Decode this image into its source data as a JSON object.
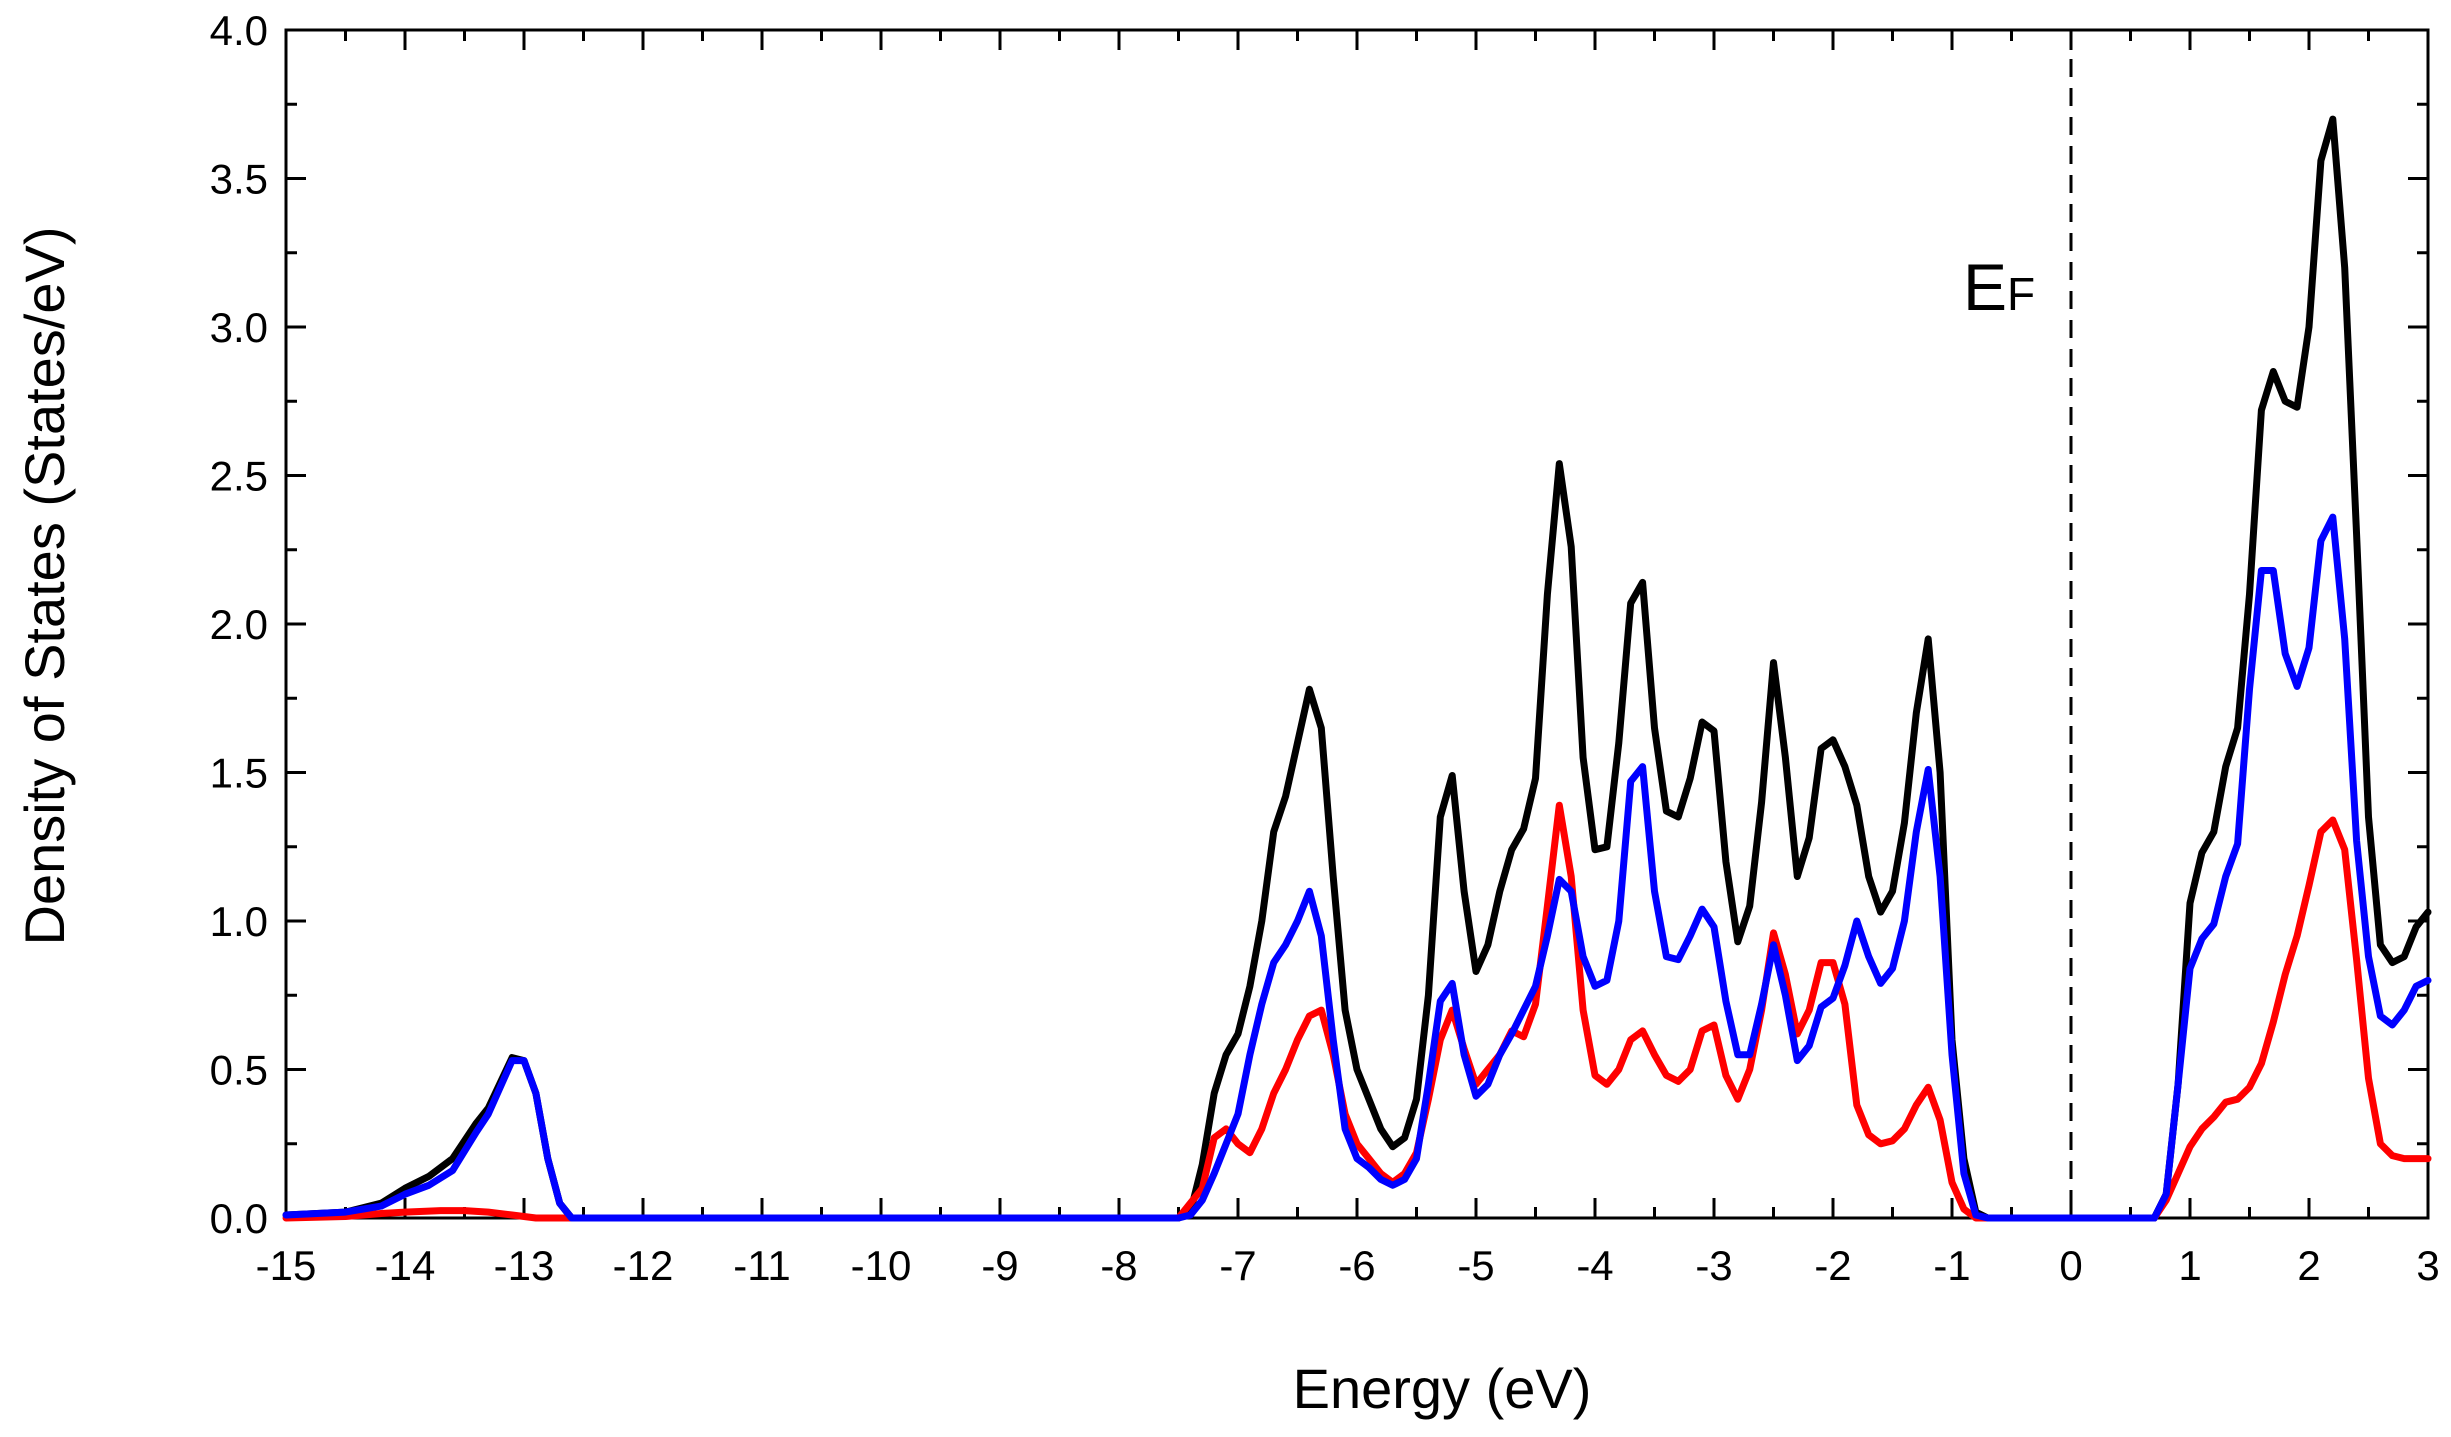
{
  "chart_data": {
    "type": "line",
    "xlabel": "Energy (eV)",
    "ylabel": "Density of States (States/eV)",
    "xlim": [
      -15,
      3
    ],
    "ylim": [
      0,
      4
    ],
    "x_ticks": [
      "-15",
      "-14",
      "-13",
      "-12",
      "-11",
      "-10",
      "-9",
      "-8",
      "-7",
      "-6",
      "-5",
      "-4",
      "-3",
      "-2",
      "-1",
      "0",
      "1",
      "2",
      "3"
    ],
    "y_ticks": [
      "0.0",
      "0.5",
      "1.0",
      "1.5",
      "2.0",
      "2.5",
      "3.0",
      "3.5",
      "4.0"
    ],
    "fermi_level": {
      "x": 0,
      "label_main": "E",
      "label_sub": "F",
      "style": "dashed"
    },
    "grid": false,
    "legend": "none",
    "series": [
      {
        "color": "#000000",
        "x": [
          -15,
          -14.5,
          -14.2,
          -14.0,
          -13.8,
          -13.6,
          -13.4,
          -13.3,
          -13.1,
          -13.0,
          -12.9,
          -12.8,
          -12.7,
          -12.6,
          -12.5,
          -7.5,
          -7.4,
          -7.3,
          -7.2,
          -7.1,
          -7.0,
          -6.9,
          -6.8,
          -6.7,
          -6.6,
          -6.5,
          -6.4,
          -6.3,
          -6.2,
          -6.1,
          -6.0,
          -5.9,
          -5.8,
          -5.7,
          -5.6,
          -5.5,
          -5.4,
          -5.3,
          -5.2,
          -5.1,
          -5.0,
          -4.9,
          -4.8,
          -4.7,
          -4.6,
          -4.5,
          -4.4,
          -4.3,
          -4.2,
          -4.1,
          -4.0,
          -3.9,
          -3.8,
          -3.7,
          -3.6,
          -3.5,
          -3.4,
          -3.3,
          -3.2,
          -3.1,
          -3.0,
          -2.9,
          -2.8,
          -2.7,
          -2.6,
          -2.5,
          -2.4,
          -2.3,
          -2.2,
          -2.1,
          -2.0,
          -1.9,
          -1.8,
          -1.7,
          -1.6,
          -1.5,
          -1.4,
          -1.3,
          -1.2,
          -1.1,
          -1.0,
          -0.9,
          -0.8,
          -0.7,
          0.7,
          0.8,
          0.9,
          1.0,
          1.1,
          1.2,
          1.3,
          1.4,
          1.5,
          1.6,
          1.7,
          1.8,
          1.9,
          2.0,
          2.1,
          2.2,
          2.3,
          2.4,
          2.5,
          2.6,
          2.7,
          2.8,
          2.9,
          3.0
        ],
        "y": [
          0.01,
          0.02,
          0.05,
          0.1,
          0.14,
          0.2,
          0.32,
          0.37,
          0.54,
          0.53,
          0.42,
          0.2,
          0.05,
          0.0,
          0.0,
          0.0,
          0.02,
          0.18,
          0.42,
          0.55,
          0.62,
          0.78,
          1.0,
          1.3,
          1.42,
          1.6,
          1.78,
          1.65,
          1.15,
          0.7,
          0.5,
          0.4,
          0.3,
          0.24,
          0.27,
          0.4,
          0.75,
          1.35,
          1.49,
          1.1,
          0.83,
          0.92,
          1.1,
          1.24,
          1.31,
          1.48,
          2.1,
          2.54,
          2.26,
          1.55,
          1.24,
          1.25,
          1.6,
          2.07,
          2.14,
          1.65,
          1.37,
          1.35,
          1.48,
          1.67,
          1.64,
          1.2,
          0.93,
          1.05,
          1.4,
          1.87,
          1.55,
          1.15,
          1.28,
          1.58,
          1.61,
          1.52,
          1.39,
          1.15,
          1.03,
          1.1,
          1.33,
          1.7,
          1.95,
          1.5,
          0.6,
          0.2,
          0.02,
          0.0,
          0.0,
          0.08,
          0.45,
          1.06,
          1.23,
          1.3,
          1.52,
          1.65,
          2.1,
          2.72,
          2.85,
          2.75,
          2.73,
          3.0,
          3.56,
          3.7,
          3.2,
          2.3,
          1.35,
          0.92,
          0.86,
          0.88,
          0.98,
          1.03
        ]
      },
      {
        "color": "#ff0000",
        "x": [
          -15,
          -14.5,
          -14.2,
          -14.0,
          -13.7,
          -13.5,
          -13.3,
          -13.1,
          -13.0,
          -12.9,
          -12.8,
          -7.5,
          -7.3,
          -7.2,
          -7.1,
          -7.0,
          -6.9,
          -6.8,
          -6.7,
          -6.6,
          -6.5,
          -6.4,
          -6.3,
          -6.2,
          -6.1,
          -6.0,
          -5.9,
          -5.8,
          -5.7,
          -5.6,
          -5.5,
          -5.4,
          -5.3,
          -5.2,
          -5.1,
          -5.0,
          -4.9,
          -4.8,
          -4.7,
          -4.6,
          -4.5,
          -4.4,
          -4.3,
          -4.2,
          -4.1,
          -4.0,
          -3.9,
          -3.8,
          -3.7,
          -3.6,
          -3.5,
          -3.4,
          -3.3,
          -3.2,
          -3.1,
          -3.0,
          -2.9,
          -2.8,
          -2.7,
          -2.6,
          -2.5,
          -2.4,
          -2.3,
          -2.2,
          -2.1,
          -2.0,
          -1.9,
          -1.8,
          -1.7,
          -1.6,
          -1.5,
          -1.4,
          -1.3,
          -1.2,
          -1.1,
          -1.0,
          -0.9,
          -0.8,
          -0.7,
          0.7,
          0.8,
          0.9,
          1.0,
          1.1,
          1.2,
          1.3,
          1.4,
          1.5,
          1.6,
          1.7,
          1.8,
          1.9,
          2.0,
          2.1,
          2.2,
          2.3,
          2.4,
          2.5,
          2.6,
          2.7,
          2.8,
          2.9,
          3.0
        ],
        "y": [
          0.0,
          0.005,
          0.015,
          0.02,
          0.025,
          0.025,
          0.02,
          0.01,
          0.005,
          0.0,
          0.0,
          0.0,
          0.1,
          0.27,
          0.3,
          0.25,
          0.22,
          0.3,
          0.42,
          0.5,
          0.6,
          0.68,
          0.7,
          0.55,
          0.35,
          0.25,
          0.2,
          0.15,
          0.12,
          0.15,
          0.22,
          0.4,
          0.6,
          0.7,
          0.57,
          0.45,
          0.5,
          0.55,
          0.63,
          0.61,
          0.72,
          1.05,
          1.39,
          1.15,
          0.7,
          0.48,
          0.45,
          0.5,
          0.6,
          0.63,
          0.55,
          0.48,
          0.46,
          0.5,
          0.63,
          0.65,
          0.48,
          0.4,
          0.5,
          0.7,
          0.96,
          0.82,
          0.62,
          0.7,
          0.86,
          0.86,
          0.72,
          0.38,
          0.28,
          0.25,
          0.26,
          0.3,
          0.38,
          0.44,
          0.33,
          0.12,
          0.03,
          0.0,
          0.0,
          0.0,
          0.06,
          0.15,
          0.24,
          0.3,
          0.34,
          0.39,
          0.4,
          0.44,
          0.52,
          0.66,
          0.82,
          0.95,
          1.12,
          1.3,
          1.34,
          1.24,
          0.87,
          0.47,
          0.25,
          0.21,
          0.2,
          0.2,
          0.2
        ]
      },
      {
        "color": "#0000ff",
        "x": [
          -15,
          -14.5,
          -14.2,
          -14.0,
          -13.8,
          -13.6,
          -13.4,
          -13.3,
          -13.1,
          -13.0,
          -12.9,
          -12.8,
          -12.7,
          -12.6,
          -12.5,
          -7.5,
          -7.4,
          -7.3,
          -7.2,
          -7.1,
          -7.0,
          -6.9,
          -6.8,
          -6.7,
          -6.6,
          -6.5,
          -6.4,
          -6.3,
          -6.2,
          -6.1,
          -6.0,
          -5.9,
          -5.8,
          -5.7,
          -5.6,
          -5.5,
          -5.4,
          -5.3,
          -5.2,
          -5.1,
          -5.0,
          -4.9,
          -4.8,
          -4.7,
          -4.6,
          -4.5,
          -4.4,
          -4.3,
          -4.2,
          -4.1,
          -4.0,
          -3.9,
          -3.8,
          -3.7,
          -3.6,
          -3.5,
          -3.4,
          -3.3,
          -3.2,
          -3.1,
          -3.0,
          -2.9,
          -2.8,
          -2.7,
          -2.6,
          -2.5,
          -2.4,
          -2.3,
          -2.2,
          -2.1,
          -2.0,
          -1.9,
          -1.8,
          -1.7,
          -1.6,
          -1.5,
          -1.4,
          -1.3,
          -1.2,
          -1.1,
          -1.0,
          -0.9,
          -0.8,
          -0.7,
          0.7,
          0.8,
          0.9,
          1.0,
          1.1,
          1.2,
          1.3,
          1.4,
          1.5,
          1.6,
          1.7,
          1.8,
          1.9,
          2.0,
          2.1,
          2.2,
          2.3,
          2.4,
          2.5,
          2.6,
          2.7,
          2.8,
          2.9,
          3.0
        ],
        "y": [
          0.01,
          0.02,
          0.04,
          0.08,
          0.11,
          0.16,
          0.29,
          0.35,
          0.53,
          0.53,
          0.42,
          0.2,
          0.05,
          0.0,
          0.0,
          0.0,
          0.01,
          0.06,
          0.15,
          0.25,
          0.35,
          0.55,
          0.72,
          0.86,
          0.92,
          1.0,
          1.1,
          0.95,
          0.6,
          0.3,
          0.2,
          0.17,
          0.13,
          0.11,
          0.13,
          0.2,
          0.45,
          0.73,
          0.79,
          0.55,
          0.41,
          0.45,
          0.55,
          0.62,
          0.7,
          0.78,
          0.95,
          1.14,
          1.1,
          0.88,
          0.78,
          0.8,
          1.0,
          1.47,
          1.52,
          1.1,
          0.88,
          0.87,
          0.95,
          1.04,
          0.98,
          0.73,
          0.55,
          0.55,
          0.72,
          0.92,
          0.75,
          0.53,
          0.58,
          0.71,
          0.74,
          0.85,
          1.0,
          0.88,
          0.79,
          0.84,
          1.0,
          1.3,
          1.51,
          1.15,
          0.55,
          0.15,
          0.01,
          0.0,
          0.0,
          0.08,
          0.45,
          0.84,
          0.94,
          0.99,
          1.15,
          1.26,
          1.78,
          2.18,
          2.18,
          1.9,
          1.79,
          1.92,
          2.28,
          2.36,
          1.95,
          1.27,
          0.88,
          0.68,
          0.65,
          0.7,
          0.78,
          0.8
        ]
      }
    ]
  }
}
